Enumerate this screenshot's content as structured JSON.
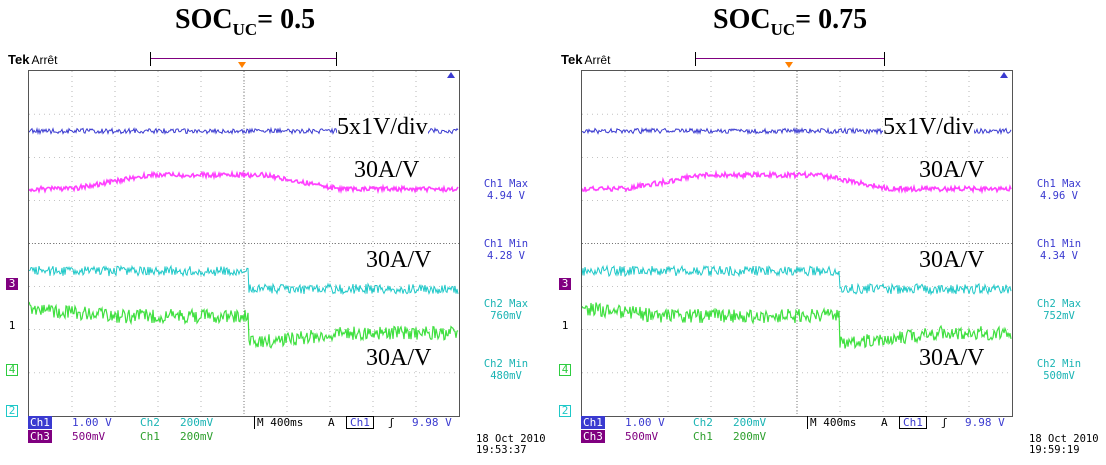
{
  "colors": {
    "ch1": "#3a3ad0",
    "ch2": "#1ec8c8",
    "ch3": "#c040c0",
    "ch4": "#2ecc40",
    "ch3_trace": "#ff40ff",
    "ch4_trace": "#40e040",
    "grid": "#888888",
    "trigger": "#ff8000"
  },
  "scopes": [
    {
      "title": "SOC",
      "title_sub": "UC",
      "title_suffix": "= 0.5",
      "brand": "Tek",
      "state": "Arrêt",
      "annotations": {
        "a1": "5x1V/div",
        "a2": "30A/V",
        "a3": "30A/V",
        "a4": "30A/V"
      },
      "markers": {
        "m3": "3",
        "m1": "1",
        "m4": "4",
        "m2": "2"
      },
      "measurements": [
        {
          "label": "Ch1 Max",
          "value": "4.94 V"
        },
        {
          "label": "Ch1 Min",
          "value": "4.28 V"
        },
        {
          "label": "Ch2 Max",
          "value": "760mV"
        },
        {
          "label": "Ch2 Min",
          "value": "480mV"
        }
      ],
      "status": {
        "ch1": "Ch1",
        "ch1_scale": "1.00 V",
        "ch2": "Ch2",
        "ch2_scale": "200mV",
        "timebase": "M 400ms",
        "trig_mode": "A",
        "trig_src": "Ch1",
        "trig_edge": "ʃ",
        "trig_level": "9.98 V",
        "ch3": "Ch3",
        "ch3_scale": "500mV",
        "ch1b": "Ch1",
        "ch1b_scale": "200mV"
      },
      "date": "18 Oct  2010",
      "time": "19:53:37",
      "step_fraction": 0.51
    },
    {
      "title": "SOC",
      "title_sub": "UC",
      "title_suffix": "= 0.75",
      "brand": "Tek",
      "state": "Arrêt",
      "annotations": {
        "a1": "5x1V/div",
        "a2": "30A/V",
        "a3": "30A/V",
        "a4": "30A/V"
      },
      "markers": {
        "m3": "3",
        "m1": "1",
        "m4": "4",
        "m2": "2"
      },
      "measurements": [
        {
          "label": "Ch1 Max",
          "value": "4.96 V"
        },
        {
          "label": "Ch1 Min",
          "value": "4.34 V"
        },
        {
          "label": "Ch2 Max",
          "value": "752mV"
        },
        {
          "label": "Ch2 Min",
          "value": "500mV"
        }
      ],
      "status": {
        "ch1": "Ch1",
        "ch1_scale": "1.00 V",
        "ch2": "Ch2",
        "ch2_scale": "200mV",
        "timebase": "M 400ms",
        "trig_mode": "A",
        "trig_src": "Ch1",
        "trig_edge": "ʃ",
        "trig_level": "9.98 V",
        "ch3": "Ch3",
        "ch3_scale": "500mV",
        "ch1b": "Ch1",
        "ch1b_scale": "200mV"
      },
      "date": "18 Oct  2010",
      "time": "19:59:19",
      "step_fraction": 0.6
    }
  ]
}
